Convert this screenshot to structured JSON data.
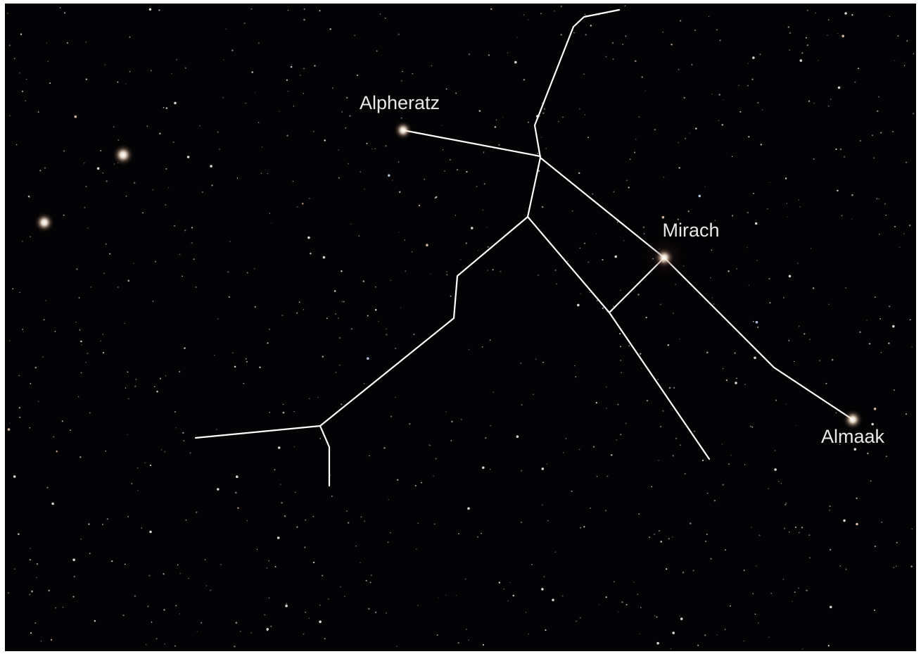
{
  "stars": [
    {
      "label": "Alpheratz"
    },
    {
      "label": "Mirach"
    },
    {
      "label": "Almaak"
    }
  ]
}
